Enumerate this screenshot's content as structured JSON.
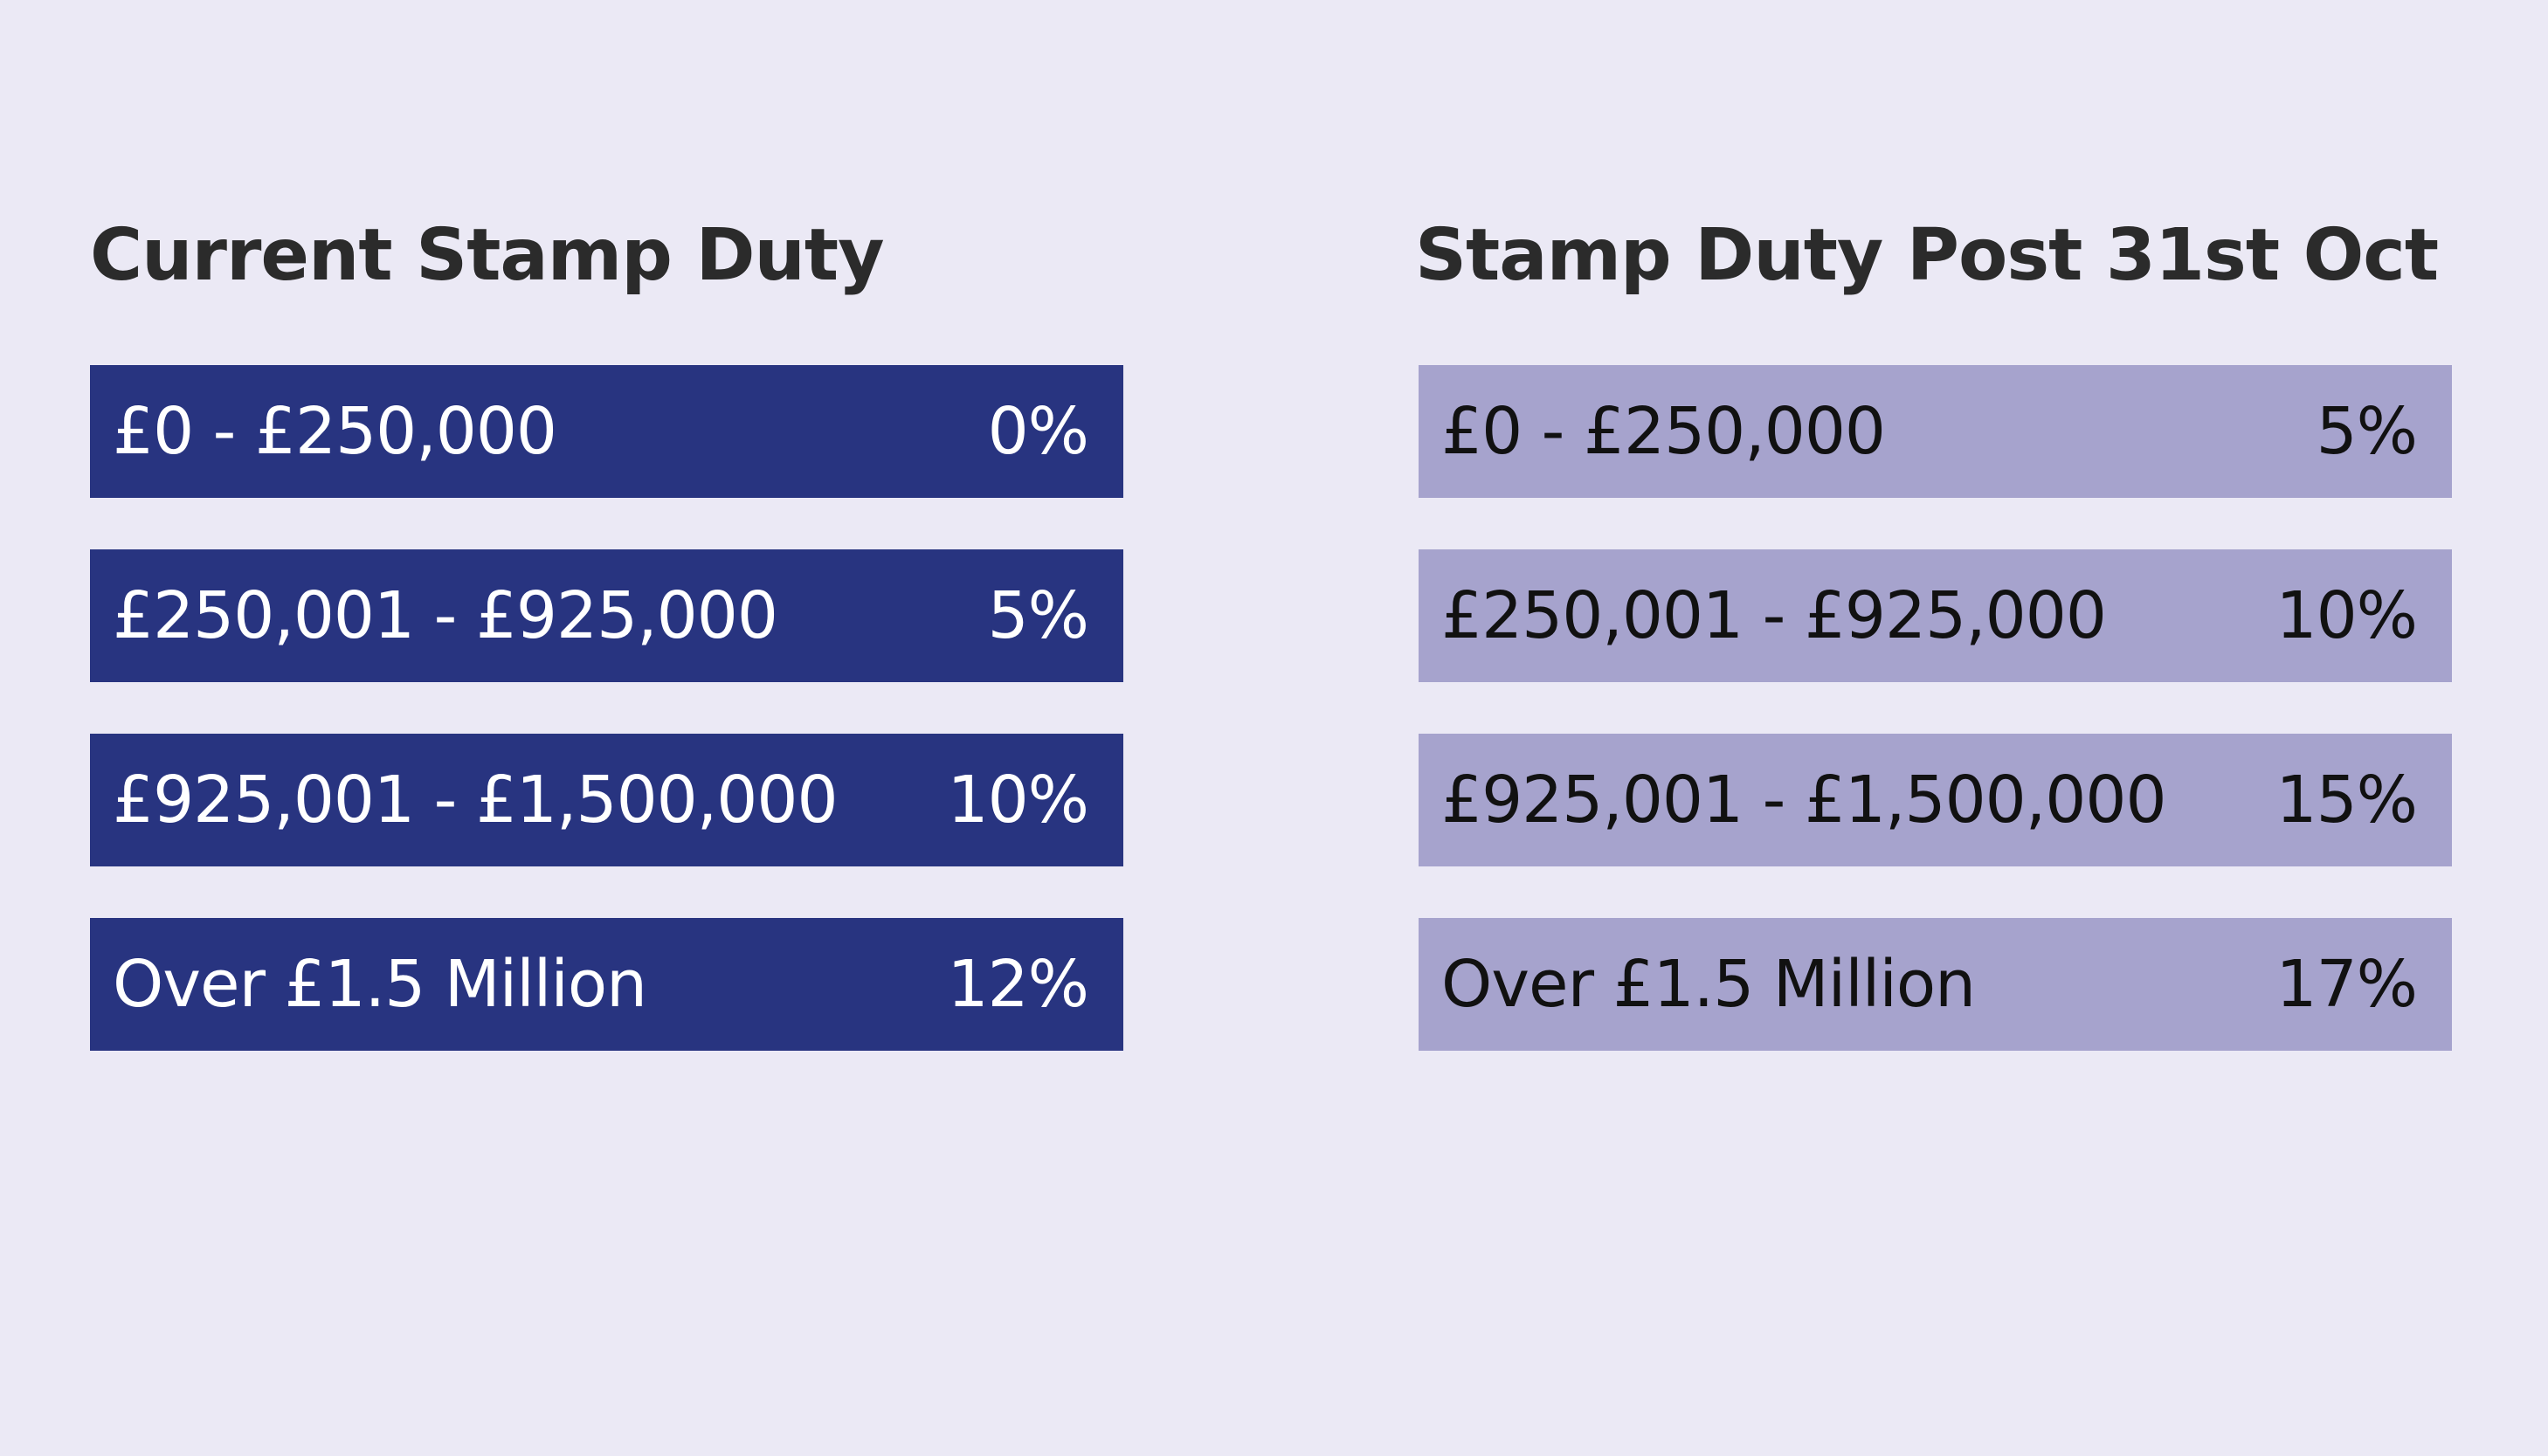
{
  "current": {
    "title": "Current Stamp Duty",
    "rows": [
      {
        "band": "£0 - £250,000",
        "rate": "0%"
      },
      {
        "band": "£250,001 - £925,000",
        "rate": "5%"
      },
      {
        "band": "£925,001 - £1,500,000",
        "rate": "10%"
      },
      {
        "band": "Over £1.5 Million",
        "rate": "12%"
      }
    ]
  },
  "post": {
    "title": "Stamp Duty Post 31st Oct",
    "rows": [
      {
        "band": "£0 - £250,000",
        "rate": "5%"
      },
      {
        "band": "£250,001 - £925,000",
        "rate": "10%"
      },
      {
        "band": "£925,001 - £1,500,000",
        "rate": "15%"
      },
      {
        "band": "Over £1.5 Million",
        "rate": "17%"
      }
    ]
  },
  "colors": {
    "background": "#ebe9f5",
    "current_row": "#283480",
    "post_row": "#a6a3cd",
    "heading_text": "#2b2b2b"
  }
}
